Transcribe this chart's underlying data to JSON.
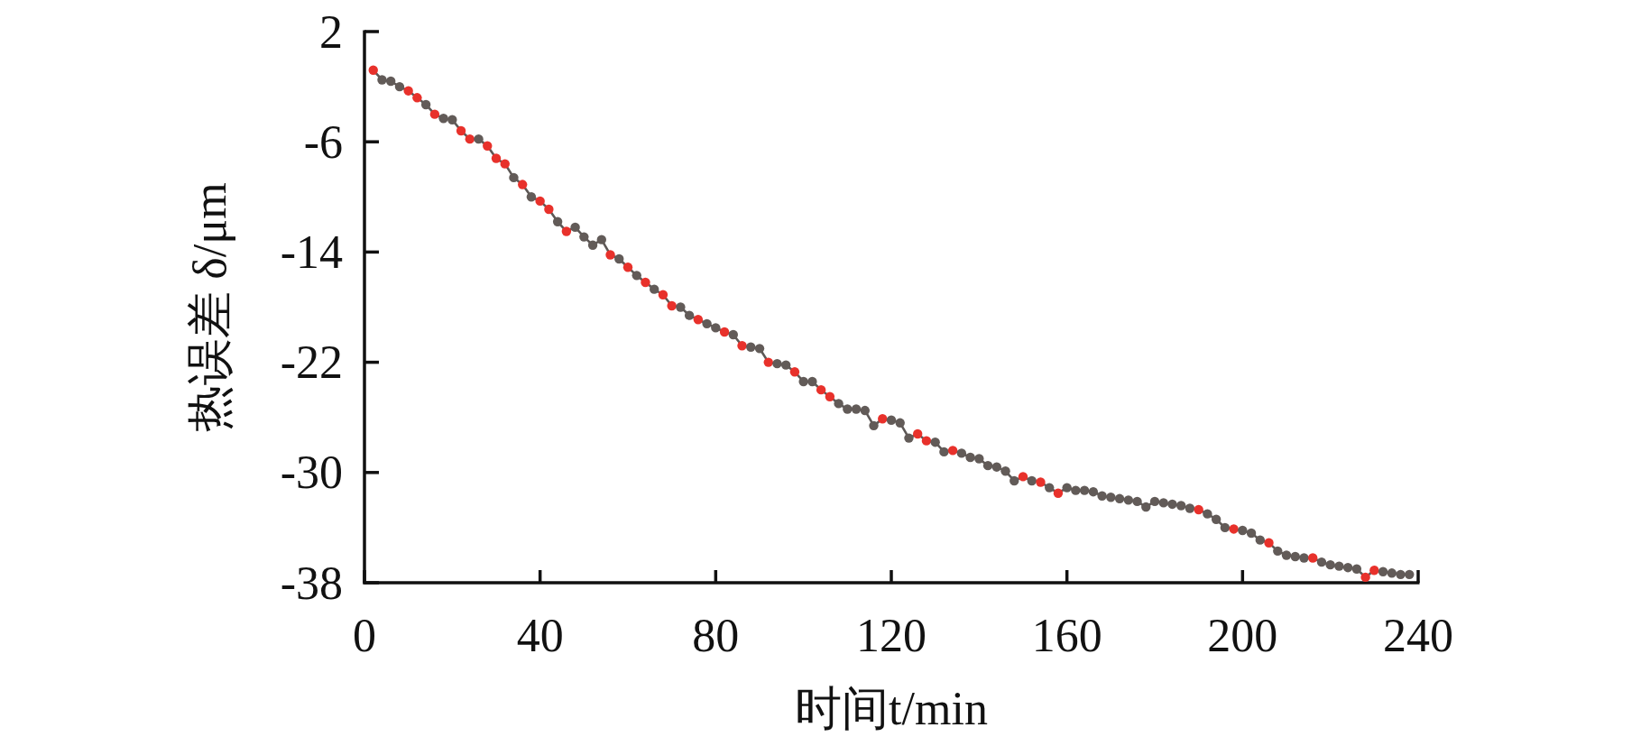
{
  "chart_data": {
    "type": "line",
    "xlabel": "时间t/min",
    "ylabel": "热误差 δ/μm",
    "x": [
      2,
      4,
      6,
      8,
      10,
      12,
      14,
      16,
      18,
      20,
      22,
      24,
      26,
      28,
      30,
      32,
      34,
      36,
      38,
      40,
      42,
      44,
      46,
      48,
      50,
      52,
      54,
      56,
      58,
      60,
      62,
      64,
      66,
      68,
      70,
      72,
      74,
      76,
      78,
      80,
      82,
      84,
      86,
      88,
      90,
      92,
      94,
      96,
      98,
      100,
      102,
      104,
      106,
      108,
      110,
      112,
      114,
      116,
      118,
      120,
      122,
      124,
      126,
      128,
      130,
      132,
      134,
      136,
      138,
      140,
      142,
      144,
      146,
      148,
      150,
      152,
      154,
      156,
      158,
      160,
      162,
      164,
      166,
      168,
      170,
      172,
      174,
      176,
      178,
      180,
      182,
      184,
      186,
      188,
      190,
      192,
      194,
      196,
      198,
      200,
      202,
      204,
      206,
      208,
      210,
      212,
      214,
      216,
      218,
      220,
      222,
      224,
      226,
      228,
      230,
      232,
      234,
      236,
      238
    ],
    "series": [
      {
        "color": "#5d5856",
        "values": [
          -0.8,
          -1.5,
          -1.6,
          -2.0,
          -2.3,
          -2.8,
          -3.3,
          -4.0,
          -4.3,
          -4.4,
          -5.2,
          -5.8,
          -5.8,
          -6.3,
          -7.2,
          -7.6,
          -8.6,
          -9.1,
          -10.0,
          -10.3,
          -10.9,
          -11.8,
          -12.5,
          -12.2,
          -12.9,
          -13.5,
          -13.1,
          -14.2,
          -14.5,
          -15.1,
          -15.7,
          -16.2,
          -16.7,
          -17.1,
          -17.9,
          -18.0,
          -18.6,
          -18.9,
          -19.2,
          -19.5,
          -19.8,
          -20.0,
          -20.8,
          -20.9,
          -21.0,
          -22.0,
          -22.1,
          -22.2,
          -22.7,
          -23.4,
          -23.4,
          -24.0,
          -24.5,
          -25.0,
          -25.4,
          -25.4,
          -25.5,
          -26.6,
          -26.1,
          -26.2,
          -26.4,
          -27.5,
          -27.2,
          -27.7,
          -27.8,
          -28.5,
          -28.4,
          -28.6,
          -28.9,
          -29.0,
          -29.5,
          -29.6,
          -29.9,
          -30.6,
          -30.3,
          -30.6,
          -30.7,
          -31.1,
          -31.5,
          -31.1,
          -31.3,
          -31.3,
          -31.4,
          -31.7,
          -31.8,
          -31.9,
          -32.0,
          -32.1,
          -32.5,
          -32.1,
          -32.2,
          -32.3,
          -32.4,
          -32.6,
          -32.7,
          -33.0,
          -33.4,
          -34.0,
          -34.1,
          -34.2,
          -34.4,
          -34.9,
          -35.1,
          -35.7,
          -36.0,
          -36.1,
          -36.2,
          -36.2,
          -36.5,
          -36.7,
          -36.8,
          -36.9,
          -37.0,
          -37.6,
          -37.1,
          -37.2,
          -37.3,
          -37.4,
          -37.4
        ],
        "colors": [
          "#e8312b",
          "#625b58",
          "#625b58",
          "#625b58",
          "#e8312b",
          "#e8312b",
          "#625b58",
          "#e8312b",
          "#625b58",
          "#625b58",
          "#e8312b",
          "#e8312b",
          "#625b58",
          "#e8312b",
          "#e8312b",
          "#e8312b",
          "#625b58",
          "#e8312b",
          "#625b58",
          "#e8312b",
          "#e8312b",
          "#625b58",
          "#e8312b",
          "#625b58",
          "#625b58",
          "#625b58",
          "#625b58",
          "#e8312b",
          "#625b58",
          "#e8312b",
          "#625b58",
          "#e8312b",
          "#625b58",
          "#e8312b",
          "#e8312b",
          "#625b58",
          "#625b58",
          "#e8312b",
          "#625b58",
          "#625b58",
          "#e8312b",
          "#625b58",
          "#e8312b",
          "#625b58",
          "#625b58",
          "#e8312b",
          "#625b58",
          "#625b58",
          "#e8312b",
          "#625b58",
          "#625b58",
          "#e8312b",
          "#e8312b",
          "#625b58",
          "#625b58",
          "#625b58",
          "#625b58",
          "#625b58",
          "#e8312b",
          "#625b58",
          "#625b58",
          "#625b58",
          "#e8312b",
          "#e8312b",
          "#625b58",
          "#625b58",
          "#e8312b",
          "#625b58",
          "#625b58",
          "#625b58",
          "#625b58",
          "#625b58",
          "#625b58",
          "#625b58",
          "#e8312b",
          "#625b58",
          "#e8312b",
          "#625b58",
          "#e8312b",
          "#625b58",
          "#625b58",
          "#625b58",
          "#625b58",
          "#625b58",
          "#625b58",
          "#625b58",
          "#625b58",
          "#625b58",
          "#625b58",
          "#625b58",
          "#625b58",
          "#625b58",
          "#625b58",
          "#625b58",
          "#e8312b",
          "#625b58",
          "#625b58",
          "#625b58",
          "#e8312b",
          "#625b58",
          "#625b58",
          "#625b58",
          "#e8312b",
          "#625b58",
          "#625b58",
          "#625b58",
          "#625b58",
          "#e8312b",
          "#625b58",
          "#625b58",
          "#625b58",
          "#625b58",
          "#625b58",
          "#e8312b",
          "#e8312b",
          "#625b58",
          "#625b58",
          "#625b58",
          "#625b58"
        ]
      }
    ],
    "xlim": [
      0,
      240
    ],
    "xticks": [
      0,
      40,
      80,
      120,
      160,
      200,
      240
    ],
    "ylim": [
      -38,
      2
    ],
    "yticks": [
      -38,
      -30,
      -22,
      -14,
      -6,
      2
    ],
    "marker": "circle",
    "line_style": "solid",
    "grid": false
  }
}
